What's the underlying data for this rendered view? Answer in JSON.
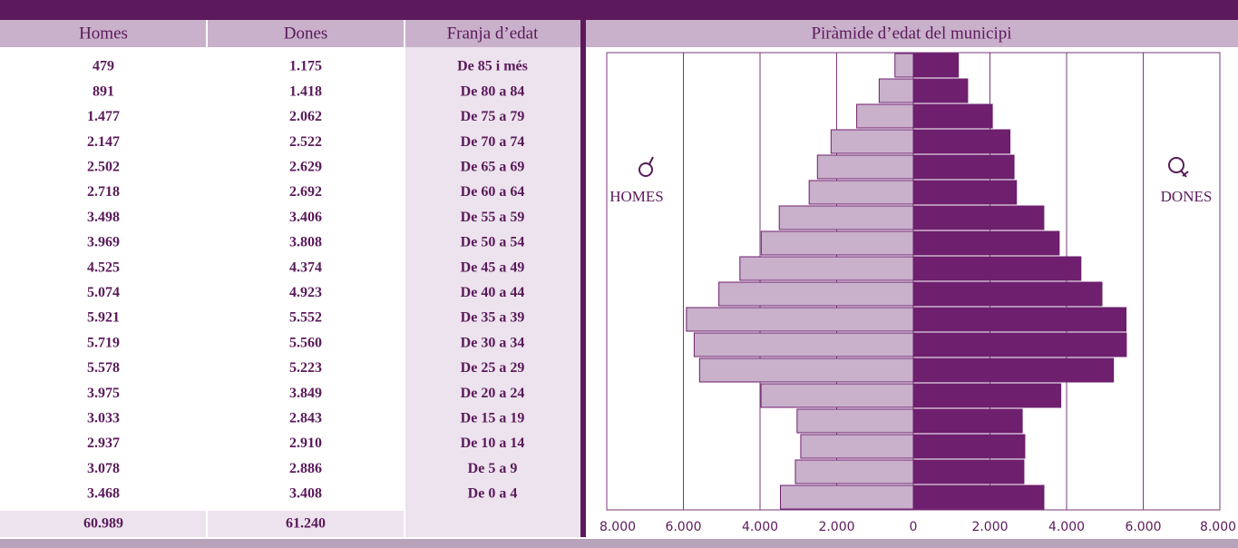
{
  "table": {
    "headers": [
      "Homes",
      "Dones",
      "Franja d’edat"
    ],
    "totals": [
      "60.989",
      "61.240"
    ]
  },
  "chart_data": {
    "type": "pyramid",
    "title": "Piràmide d’edat del municipi",
    "left_label": "HOMES",
    "right_label": "DONES",
    "categories": [
      "De 85 i més",
      "De 80 a 84",
      "De 75 a 79",
      "De 70 a 74",
      "De 65 a 69",
      "De 60 a 64",
      "De 55 a 59",
      "De 50 a 54",
      "De 45 a 49",
      "De 40 a 44",
      "De 35 a 39",
      "De 30 a 34",
      "De 25 a 29",
      "De 20 a 24",
      "De 15 a 19",
      "De 10 a 14",
      "De 5 a 9",
      "De 0 a 4"
    ],
    "series": [
      {
        "name": "Homes",
        "color": "#c9b0cb",
        "side": "left",
        "values": [
          479,
          891,
          1477,
          2147,
          2502,
          2718,
          3498,
          3969,
          4525,
          5074,
          5921,
          5719,
          5578,
          3975,
          3033,
          2937,
          3078,
          3468
        ],
        "value_labels": [
          "479",
          "891",
          "1.477",
          "2.147",
          "2.502",
          "2.718",
          "3.498",
          "3.969",
          "4.525",
          "5.074",
          "5.921",
          "5.719",
          "5.578",
          "3.975",
          "3.033",
          "2.937",
          "3.078",
          "3.468"
        ]
      },
      {
        "name": "Dones",
        "color": "#6e1f6e",
        "side": "right",
        "values": [
          1175,
          1418,
          2062,
          2522,
          2629,
          2692,
          3406,
          3808,
          4374,
          4923,
          5552,
          5560,
          5223,
          3849,
          2843,
          2910,
          2886,
          3408
        ],
        "value_labels": [
          "1.175",
          "1.418",
          "2.062",
          "2.522",
          "2.629",
          "2.692",
          "3.406",
          "3.808",
          "4.374",
          "4.923",
          "5.552",
          "5.560",
          "5.223",
          "3.849",
          "2.843",
          "2.910",
          "2.886",
          "3.408"
        ]
      }
    ],
    "xlim": [
      -8000,
      8000
    ],
    "xticks": [
      {
        "value": -8000,
        "label": "8.000"
      },
      {
        "value": -6000,
        "label": "6.000"
      },
      {
        "value": -4000,
        "label": "4.000"
      },
      {
        "value": -2000,
        "label": "2.000"
      },
      0,
      {
        "value": 2000,
        "label": "2.000"
      },
      {
        "value": 4000,
        "label": "4.000"
      },
      {
        "value": 6000,
        "label": "6.000"
      },
      {
        "value": 8000,
        "label": "8.000"
      }
    ],
    "grid": true
  }
}
